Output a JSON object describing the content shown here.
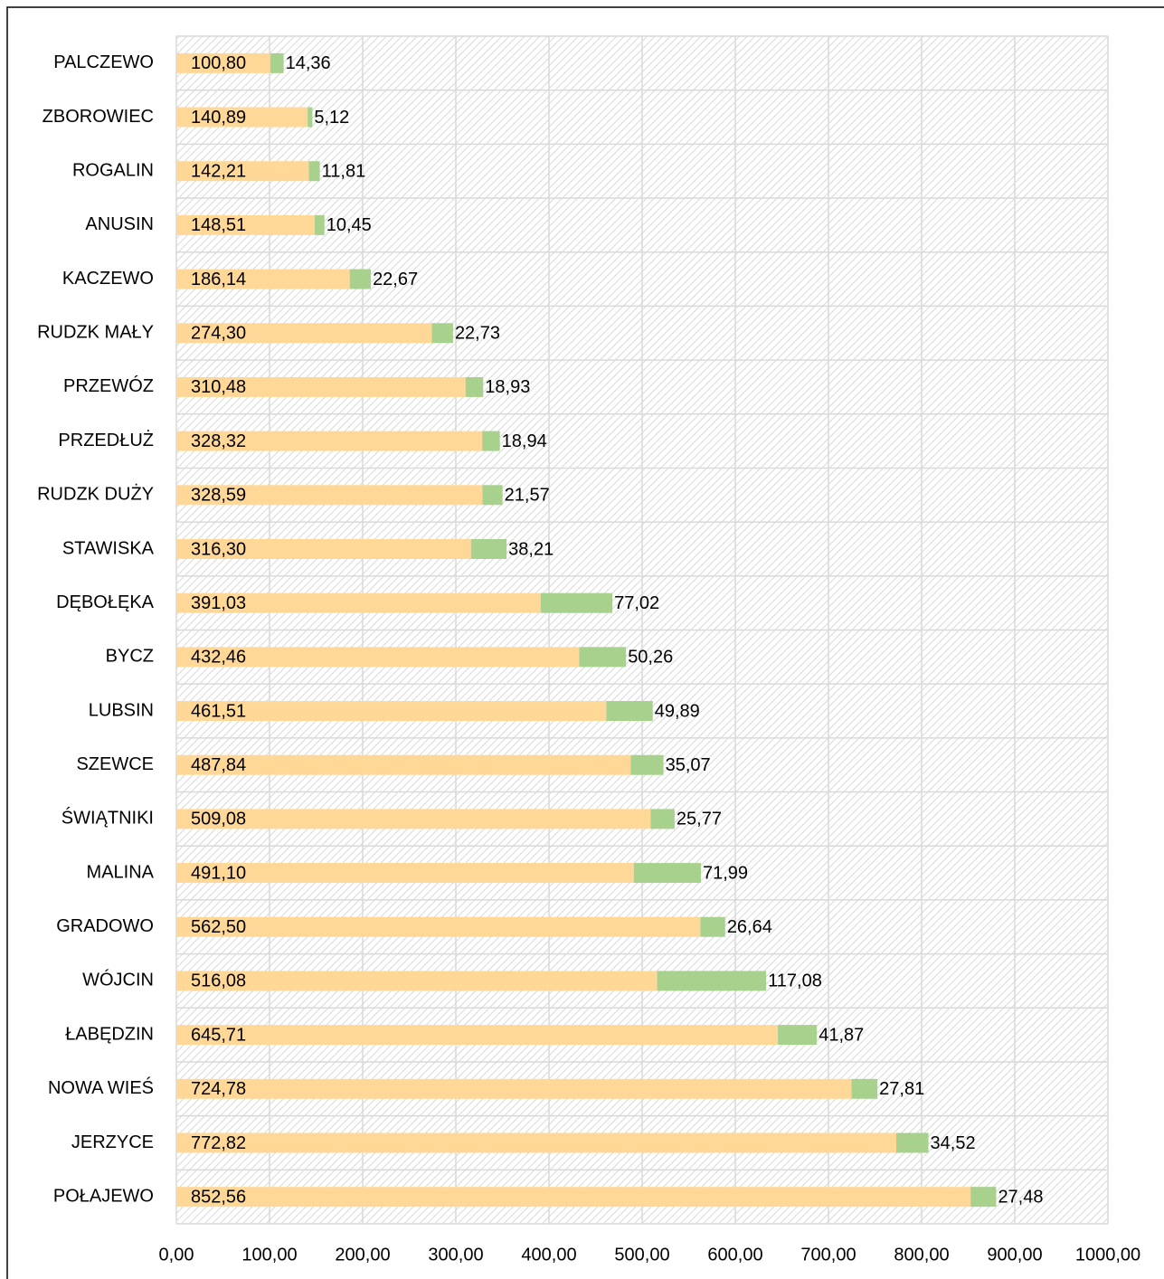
{
  "chart_data": {
    "type": "stacked_bar_horizontal",
    "categories": [
      "PALCZEWO",
      "ZBOROWIEC",
      "ROGALIN",
      "ANUSIN",
      "KACZEWO",
      "RUDZK MAŁY",
      "PRZEWÓZ",
      "PRZEDŁUŻ",
      "RUDZK DUŻY",
      "STAWISKA",
      "DĘBOŁĘKA",
      "BYCZ",
      "LUBSIN",
      "SZEWCE",
      "ŚWIĄTNIKI",
      "MALINA",
      "GRADOWO",
      "WÓJCIN",
      "ŁABĘDZIN",
      "NOWA WIEŚ",
      "JERZYCE",
      "POŁAJEWO"
    ],
    "series": [
      {
        "color": "#ffd898",
        "values": [
          100.8,
          140.89,
          142.21,
          148.51,
          186.14,
          274.3,
          310.48,
          328.32,
          328.59,
          316.3,
          391.03,
          432.46,
          461.51,
          487.84,
          509.08,
          491.1,
          562.5,
          516.08,
          645.71,
          724.78,
          772.82,
          852.56
        ],
        "value_labels": [
          "100,80",
          "140,89",
          "142,21",
          "148,51",
          "186,14",
          "274,30",
          "310,48",
          "328,32",
          "328,59",
          "316,30",
          "391,03",
          "432,46",
          "461,51",
          "487,84",
          "509,08",
          "491,10",
          "562,50",
          "516,08",
          "645,71",
          "724,78",
          "772,82",
          "852,56"
        ]
      },
      {
        "color": "#a9d18e",
        "values": [
          14.36,
          5.12,
          11.81,
          10.45,
          22.67,
          22.73,
          18.93,
          18.94,
          21.57,
          38.21,
          77.02,
          50.26,
          49.89,
          35.07,
          25.77,
          71.99,
          26.64,
          117.08,
          41.87,
          27.81,
          34.52,
          27.48
        ],
        "value_labels": [
          "14,36",
          "5,12",
          "11,81",
          "10,45",
          "22,67",
          "22,73",
          "18,93",
          "18,94",
          "21,57",
          "38,21",
          "77,02",
          "50,26",
          "49,89",
          "35,07",
          "25,77",
          "71,99",
          "26,64",
          "117,08",
          "41,87",
          "27,81",
          "34,52",
          "27,48"
        ]
      }
    ],
    "xlim": [
      0,
      1000
    ],
    "xticks": [
      {
        "value": 0,
        "label": "0,00"
      },
      {
        "value": 100,
        "label": "100,00"
      },
      {
        "value": 200,
        "label": "200,00"
      },
      {
        "value": 300,
        "label": "300,00"
      },
      {
        "value": 400,
        "label": "400,00"
      },
      {
        "value": 500,
        "label": "500,00"
      },
      {
        "value": 600,
        "label": "600,00"
      },
      {
        "value": 700,
        "label": "700,00"
      },
      {
        "value": 800,
        "label": "800,00"
      },
      {
        "value": 900,
        "label": "900,00"
      },
      {
        "value": 1000,
        "label": "1000,00"
      }
    ],
    "grid": true
  }
}
